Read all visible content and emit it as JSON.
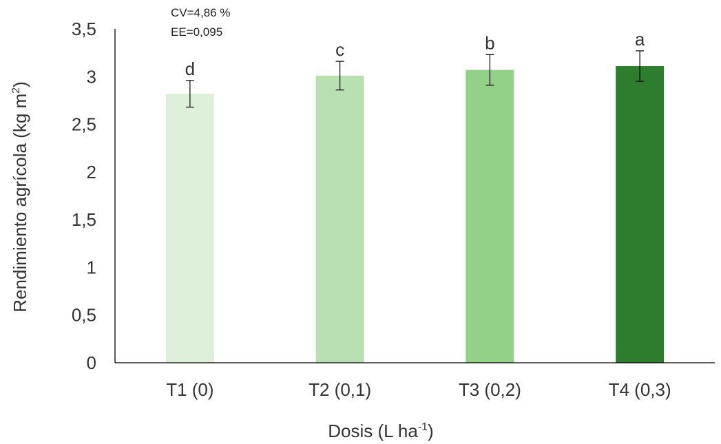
{
  "chart_data": {
    "type": "bar",
    "categories": [
      "T1 (0)",
      "T2 (0,1)",
      "T3 (0,2)",
      "T4 (0,3)"
    ],
    "values": [
      2.82,
      3.01,
      3.07,
      3.11
    ],
    "errors": [
      0.14,
      0.15,
      0.16,
      0.16
    ],
    "letters": [
      "d",
      "c",
      "b",
      "a"
    ],
    "colors": [
      "#dff0da",
      "#b9e0b0",
      "#93d189",
      "#2e7d2e"
    ],
    "ylim": [
      0,
      3.5
    ],
    "yticks": [
      "0",
      "0,5",
      "1",
      "1,5",
      "2",
      "2,5",
      "3",
      "3,5"
    ],
    "ylabel_main": "Rendimiento agrícola (kg m",
    "ylabel_sup": "2",
    "ylabel_end": ")",
    "xlabel_main": "Dosis (L ha",
    "xlabel_sup": "-1",
    "xlabel_end": ")",
    "annotations": [
      "CV=4,86 %",
      "EE=0,095"
    ],
    "grid": false
  }
}
